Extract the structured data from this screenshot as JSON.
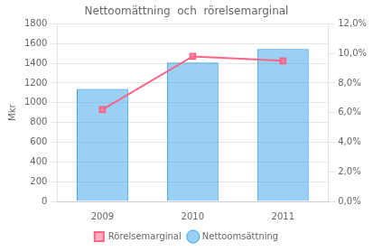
{
  "chart_data": {
    "type": "bar",
    "title": "Nettoomättning  och  rörelsemarginal",
    "categories": [
      "2009",
      "2010",
      "2011"
    ],
    "series": [
      {
        "name": "Nettoomsättning",
        "values": [
          1140,
          1407.8,
          1544.3
        ]
      },
      {
        "name": "Rörelsemarginal",
        "type": "line",
        "axis": "y2",
        "marker": "square",
        "values": [
          0.062,
          0.098,
          0.095
        ]
      }
    ],
    "ylabel": "Mkr",
    "ylim": [
      0,
      1800
    ],
    "yticks": [
      0,
      200,
      400,
      600,
      800,
      1000,
      1200,
      1400,
      1600,
      1800
    ],
    "y2lim": [
      0.0,
      0.12
    ],
    "y2ticks": [
      {
        "value": 0.0,
        "label": "0,0%"
      },
      {
        "value": 0.02,
        "label": "2,0%"
      },
      {
        "value": 0.04,
        "label": "4,0%"
      },
      {
        "value": 0.06,
        "label": "6,0%"
      },
      {
        "value": 0.08,
        "label": "8,0%"
      },
      {
        "value": 0.1,
        "label": "10,0%"
      },
      {
        "value": 0.12,
        "label": "12,0%"
      }
    ],
    "grid": true,
    "legend": "bottom"
  }
}
